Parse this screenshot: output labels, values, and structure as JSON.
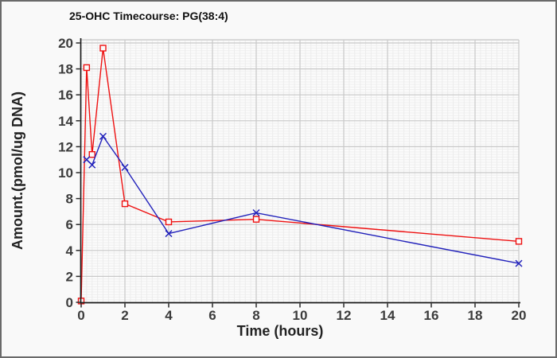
{
  "panel": {
    "background": "#f9f9f9",
    "border_color": "#6a6a6a"
  },
  "chart_data": {
    "type": "line",
    "title": "25-OHC Timecourse: PG(38:4)",
    "xlabel": "Time (hours)",
    "ylabel": "Amount.(pmol/ug DNA)",
    "xlim": [
      0,
      20
    ],
    "ylim": [
      0,
      20
    ],
    "x_ticks": [
      0,
      2,
      4,
      6,
      8,
      10,
      12,
      14,
      16,
      18,
      20
    ],
    "y_ticks": [
      0,
      2,
      4,
      6,
      8,
      10,
      12,
      14,
      16,
      18,
      20
    ],
    "grid": {
      "major": true,
      "minor": true,
      "major_color": "#c8c8c8",
      "minor_color_h": "#efefef",
      "minor_color_v": "#ececec",
      "minor_step_x": 0.25,
      "minor_step_y": 0.2
    },
    "legend": "none",
    "axis_color": "#1a1a1a",
    "tick_label_color": "#3c3c3c",
    "plot_background": "#fbfbfb",
    "series": [
      {
        "id": "red-squares",
        "color": "#ee1111",
        "marker": "square",
        "x": [
          0,
          0.25,
          0.5,
          1,
          2,
          4,
          8,
          20
        ],
        "y": [
          0.1,
          18.1,
          11.4,
          19.6,
          7.6,
          6.2,
          6.4,
          4.7
        ]
      },
      {
        "id": "blue-crosses",
        "color": "#2222bb",
        "marker": "x",
        "x": [
          0.25,
          0.5,
          1,
          2,
          4,
          8,
          20
        ],
        "y": [
          11.0,
          10.6,
          12.8,
          10.4,
          5.3,
          6.9,
          3.0
        ]
      }
    ]
  }
}
